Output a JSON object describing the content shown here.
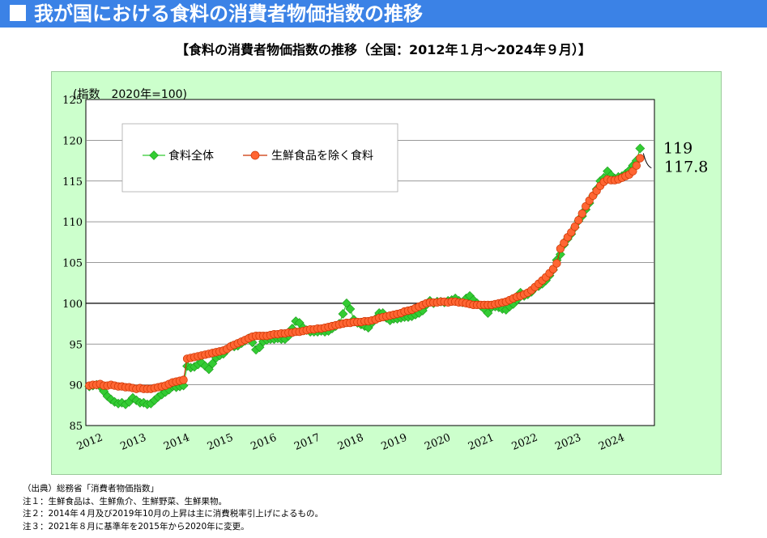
{
  "header": {
    "title": "我が国における食料の消費者物価指数の推移"
  },
  "chart_title": "【食料の消費者物価指数の推移（全国：2012年１月～2024年９月）】",
  "notes": {
    "source": "（出典）総務省「消費者物価指数」",
    "note1": "注１：生鮮食品は、生鮮魚介、生鮮野菜、生鮮果物。",
    "note2": "注２：2014年４月及び2019年10月の上昇は主に消費税率引上げによるもの。",
    "note3": "注３：2021年８月に基準年を2015年から2020年に変更。"
  },
  "colors": {
    "banner": "#3b82e6",
    "plot_area_outer": "#ccffcc",
    "series_all_fill": "#33cc33",
    "series_all_stroke": "#1a9a1a",
    "series_ex_fill": "#ff6633",
    "series_ex_stroke": "#cc3300"
  },
  "chart_data": {
    "type": "line",
    "title": "【食料の消費者物価指数の推移（全国：2012年１月～2024年９月）】",
    "ylabel": "(指数　2020年=100)",
    "ylim": [
      85,
      125
    ],
    "yticks": [
      "85",
      "90",
      "95",
      "100",
      "105",
      "110",
      "115",
      "120",
      "125"
    ],
    "xlim": [
      "2012-01",
      "2024-09"
    ],
    "xticks": [
      "2012",
      "2013",
      "2014",
      "2015",
      "2016",
      "2017",
      "2018",
      "2019",
      "2020",
      "2021",
      "2022",
      "2023",
      "2024"
    ],
    "grid": "horizontal",
    "legend_position": "top-left",
    "annotations": [
      "119",
      "117.8"
    ],
    "series": [
      {
        "name": "食料全体",
        "marker": "diamond",
        "values": [
          89.8,
          89.9,
          90.0,
          89.8,
          89.2,
          88.6,
          88.2,
          87.9,
          87.7,
          87.8,
          87.6,
          87.9,
          88.4,
          88.1,
          87.8,
          87.8,
          87.6,
          87.7,
          88.1,
          88.5,
          88.8,
          89.1,
          89.4,
          89.8,
          89.7,
          89.8,
          89.9,
          92.3,
          92.1,
          92.2,
          92.5,
          92.7,
          92.3,
          91.9,
          92.6,
          93.3,
          93.6,
          93.8,
          94.3,
          94.7,
          94.7,
          94.8,
          95.1,
          95.4,
          95.7,
          95.2,
          94.3,
          94.6,
          95.3,
          95.5,
          95.6,
          95.6,
          95.7,
          95.6,
          95.6,
          96.0,
          96.9,
          97.8,
          97.6,
          97.0,
          96.7,
          96.5,
          96.5,
          96.5,
          96.6,
          96.5,
          96.6,
          96.9,
          97.2,
          97.5,
          98.7,
          100.0,
          99.3,
          98.0,
          97.6,
          97.4,
          97.2,
          97.0,
          97.6,
          98.1,
          98.8,
          98.8,
          98.2,
          97.9,
          98.1,
          98.1,
          98.2,
          98.3,
          98.3,
          98.4,
          98.6,
          98.8,
          99.1,
          99.8,
          100.3,
          100.0,
          100.2,
          100.2,
          100.1,
          100.3,
          100.4,
          100.6,
          100.3,
          100.1,
          100.6,
          100.9,
          100.4,
          100.0,
          99.7,
          99.3,
          98.8,
          99.5,
          99.6,
          99.5,
          99.3,
          99.2,
          99.6,
          99.9,
          100.4,
          101.3,
          100.9,
          101.1,
          101.4,
          101.9,
          102.1,
          102.4,
          102.8,
          103.4,
          104.1,
          105.3,
          106.0,
          107.2,
          107.9,
          108.5,
          109.3,
          110.1,
          110.7,
          111.5,
          112.3,
          113.2,
          114.0,
          115.0,
          115.4,
          116.2,
          115.7,
          115.3,
          115.5,
          115.6,
          115.9,
          116.3,
          116.9,
          117.5,
          119.0
        ]
      },
      {
        "name": "生鮮食品を除く食料",
        "marker": "circle",
        "values": [
          89.9,
          90.0,
          90.0,
          90.1,
          89.9,
          89.9,
          90.0,
          89.9,
          89.8,
          89.8,
          89.7,
          89.7,
          89.6,
          89.5,
          89.6,
          89.5,
          89.5,
          89.5,
          89.6,
          89.7,
          89.8,
          89.9,
          90.1,
          90.3,
          90.4,
          90.5,
          90.6,
          93.2,
          93.3,
          93.4,
          93.5,
          93.6,
          93.7,
          93.8,
          93.9,
          94.0,
          94.1,
          94.2,
          94.4,
          94.7,
          94.9,
          95.1,
          95.3,
          95.5,
          95.7,
          95.9,
          96.0,
          96.0,
          96.0,
          96.0,
          96.1,
          96.2,
          96.2,
          96.3,
          96.3,
          96.4,
          96.4,
          96.5,
          96.5,
          96.6,
          96.7,
          96.8,
          96.8,
          96.9,
          96.9,
          97.0,
          97.1,
          97.2,
          97.3,
          97.4,
          97.5,
          97.6,
          97.6,
          97.7,
          97.7,
          97.7,
          97.8,
          97.8,
          97.9,
          98.0,
          98.2,
          98.3,
          98.4,
          98.5,
          98.6,
          98.7,
          98.8,
          99.0,
          99.1,
          99.2,
          99.4,
          99.6,
          99.8,
          100.0,
          100.1,
          100.1,
          100.1,
          100.2,
          100.2,
          100.1,
          100.2,
          100.2,
          100.1,
          100.1,
          100.0,
          99.9,
          99.8,
          99.8,
          99.8,
          99.8,
          99.8,
          99.8,
          99.9,
          100.0,
          100.1,
          100.2,
          100.4,
          100.6,
          100.8,
          100.9,
          101.1,
          101.3,
          101.6,
          102.0,
          102.4,
          102.8,
          103.2,
          103.7,
          104.2,
          104.9,
          106.7,
          107.4,
          108.1,
          108.7,
          109.4,
          110.2,
          111.0,
          111.9,
          112.6,
          113.2,
          113.8,
          114.4,
          114.9,
          115.2,
          115.1,
          115.1,
          115.2,
          115.4,
          115.6,
          115.8,
          116.2,
          116.9,
          117.8
        ]
      }
    ]
  }
}
